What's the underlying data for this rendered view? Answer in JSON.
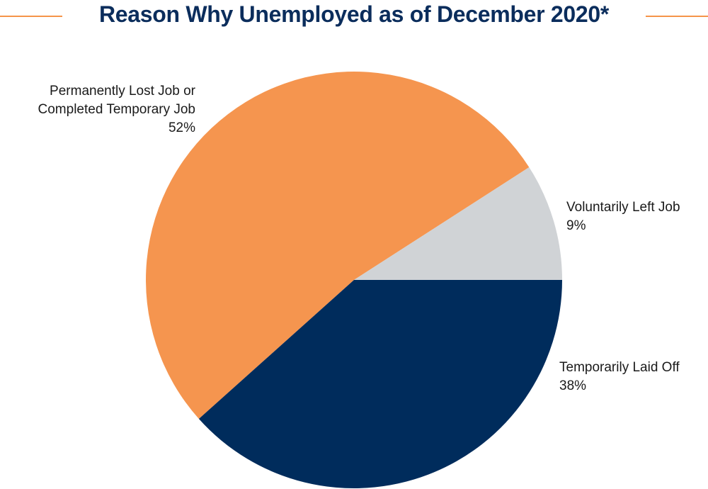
{
  "chart_data": {
    "type": "pie",
    "title": "Reason Why Unemployed as of December 2020*",
    "slices": [
      {
        "label": "Permanently Lost Job or Completed Temporary Job",
        "label_lines": [
          "Permanently Lost Job or",
          "Completed Temporary Job"
        ],
        "value": 52,
        "value_label": "52%",
        "color": "#f5954f"
      },
      {
        "label": "Voluntarily Left Job",
        "label_lines": [
          "Voluntarily Left Job"
        ],
        "value": 9,
        "value_label": "9%",
        "color": "#d0d3d6"
      },
      {
        "label": "Temporarily Laid Off",
        "label_lines": [
          "Temporarily Laid Off"
        ],
        "value": 38,
        "value_label": "38%",
        "color": "#002c5c"
      }
    ],
    "legend": "none"
  },
  "colors": {
    "title": "#0b2d5c",
    "rule": "#f5954a"
  }
}
